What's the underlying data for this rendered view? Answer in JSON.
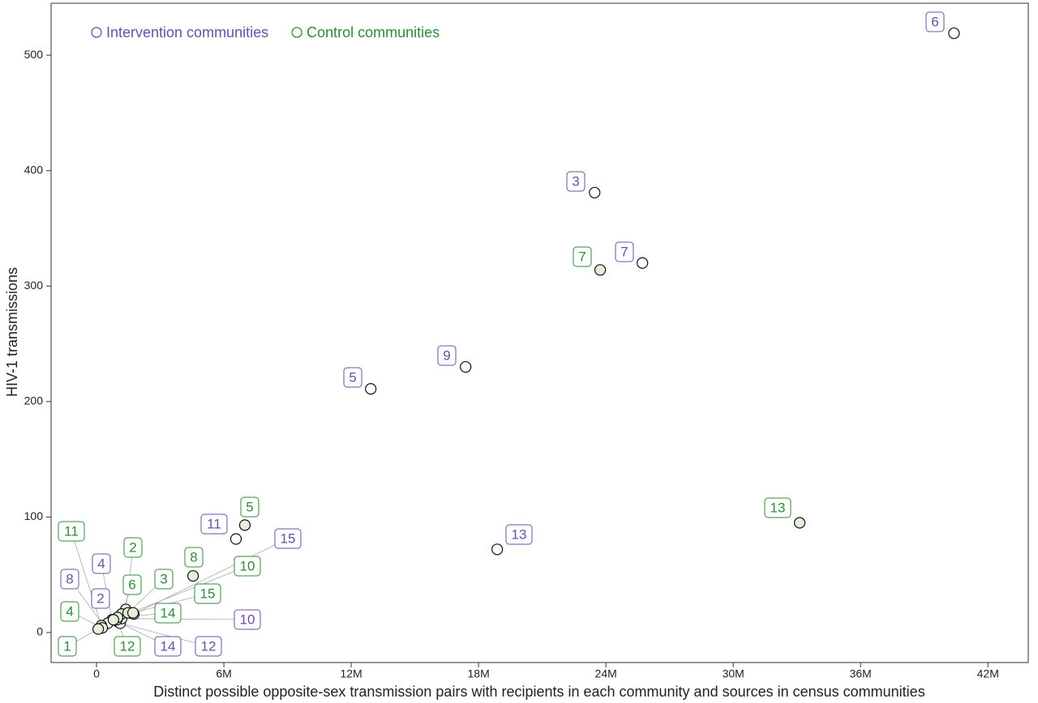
{
  "chart_data": {
    "type": "scatter",
    "x_label": "Distinct possible opposite-sex transmission pairs with recipients in each community and sources in census communities",
    "y_label": "HIV-1 transmissions",
    "xlim": [
      -2140000,
      43900000
    ],
    "ylim": [
      -26,
      545
    ],
    "xticks": [
      {
        "value": 0,
        "label": "0"
      },
      {
        "value": 6000000,
        "label": "6M"
      },
      {
        "value": 12000000,
        "label": "12M"
      },
      {
        "value": 18000000,
        "label": "18M"
      },
      {
        "value": 24000000,
        "label": "24M"
      },
      {
        "value": 30000000,
        "label": "30M"
      },
      {
        "value": 36000000,
        "label": "36M"
      },
      {
        "value": 42000000,
        "label": "42M"
      }
    ],
    "yticks": [
      0,
      100,
      200,
      300,
      400,
      500
    ],
    "legend": "top-left",
    "series": [
      {
        "name": "Intervention communities",
        "color": "#6a4fa8",
        "fill": "#ffffff",
        "labels": [
          "6",
          "3",
          "7",
          "9",
          "5",
          "13",
          "11",
          "15",
          "8",
          "4",
          "2",
          "14",
          "12",
          "10"
        ],
        "x": [
          40400000,
          23470000,
          25720000,
          17390000,
          12920000,
          18880000,
          6570000,
          1760000,
          340000,
          730000,
          530000,
          1030000,
          1110000,
          1180000
        ],
        "values": [
          519,
          381,
          320,
          230,
          211,
          72,
          81,
          16,
          6,
          11,
          8,
          9,
          8,
          12
        ]
      },
      {
        "name": "Control communities",
        "color": "#2e8b3a",
        "fill": "#e6efdc",
        "labels": [
          "13",
          "7",
          "5",
          "8",
          "11",
          "2",
          "6",
          "4",
          "1",
          "12",
          "3",
          "14",
          "15",
          "10"
        ],
        "x": [
          33130000,
          23730000,
          6990000,
          4550000,
          230000,
          1380000,
          1180000,
          270000,
          80000,
          960000,
          1490000,
          990000,
          1720000,
          800000
        ],
        "values": [
          95,
          314,
          93,
          49,
          6,
          20,
          16,
          4,
          3,
          11,
          17,
          13,
          17,
          11
        ]
      }
    ]
  }
}
